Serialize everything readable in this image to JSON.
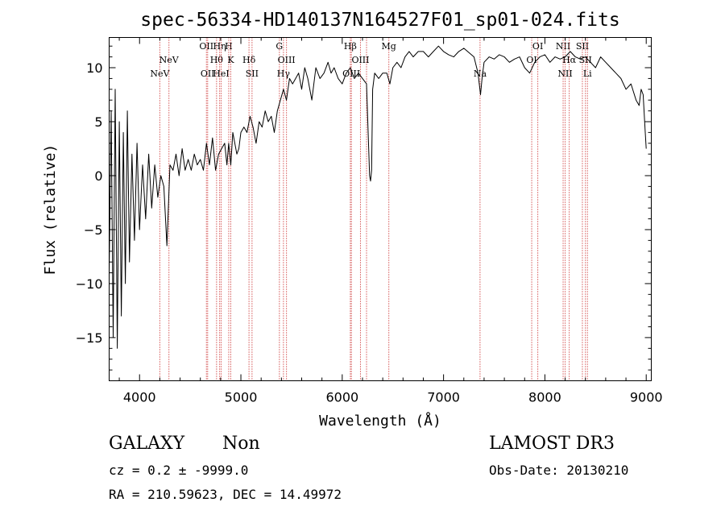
{
  "chart_data": {
    "type": "line",
    "title": "spec-56334-HD140137N164527F01_sp01-024.fits",
    "xlabel": "Wavelength (Å)",
    "ylabel": "Flux (relative)",
    "xlim": [
      3700,
      9050
    ],
    "ylim": [
      -19,
      12.8
    ],
    "xticks": [
      4000,
      5000,
      6000,
      7000,
      8000,
      9000
    ],
    "yticks": [
      -15,
      -10,
      -5,
      0,
      5,
      10
    ],
    "grid": false,
    "series": [
      {
        "name": "flux",
        "color": "#000000",
        "x": [
          3700,
          3720,
          3740,
          3760,
          3780,
          3800,
          3820,
          3840,
          3860,
          3880,
          3900,
          3925,
          3950,
          3975,
          4000,
          4030,
          4060,
          4090,
          4120,
          4150,
          4180,
          4210,
          4240,
          4270,
          4300,
          4330,
          4360,
          4390,
          4420,
          4450,
          4480,
          4510,
          4540,
          4570,
          4600,
          4630,
          4660,
          4690,
          4720,
          4750,
          4780,
          4810,
          4840,
          4862,
          4880,
          4900,
          4920,
          4940,
          4960,
          4980,
          5000,
          5030,
          5060,
          5090,
          5120,
          5150,
          5180,
          5210,
          5240,
          5270,
          5300,
          5330,
          5360,
          5390,
          5420,
          5450,
          5480,
          5510,
          5540,
          5570,
          5600,
          5630,
          5660,
          5700,
          5740,
          5780,
          5820,
          5860,
          5890,
          5920,
          5960,
          6000,
          6040,
          6080,
          6120,
          6160,
          6200,
          6240,
          6270,
          6280,
          6290,
          6300,
          6320,
          6360,
          6400,
          6440,
          6470,
          6500,
          6540,
          6580,
          6620,
          6660,
          6700,
          6750,
          6800,
          6850,
          6900,
          6950,
          7000,
          7050,
          7100,
          7150,
          7200,
          7250,
          7300,
          7340,
          7365,
          7380,
          7400,
          7450,
          7500,
          7550,
          7600,
          7650,
          7700,
          7750,
          7800,
          7850,
          7900,
          7950,
          8000,
          8050,
          8100,
          8150,
          8200,
          8250,
          8300,
          8350,
          8400,
          8450,
          8500,
          8550,
          8600,
          8650,
          8700,
          8750,
          8800,
          8850,
          8900,
          8930,
          8950,
          8970,
          8990,
          9000
        ],
        "y": [
          -9,
          6,
          -15,
          8,
          -16,
          5,
          -13,
          4,
          -10,
          6,
          -8,
          2,
          -6,
          3,
          -5,
          1,
          -4,
          2,
          -3,
          1,
          -2,
          0,
          -1,
          -6.5,
          1,
          0.5,
          2,
          0,
          2.5,
          0.5,
          1.5,
          0.5,
          2,
          1,
          1.5,
          0.5,
          3,
          1,
          3.5,
          0.5,
          2,
          2.5,
          3,
          1,
          3,
          1,
          4,
          3,
          2,
          2.5,
          4,
          4.5,
          4,
          5.5,
          4.5,
          3,
          5,
          4.5,
          6,
          5,
          5.5,
          4,
          6,
          7,
          8,
          7,
          9,
          8.5,
          9,
          9.5,
          8,
          10,
          9,
          7,
          10,
          9,
          9.5,
          10.5,
          9.5,
          10,
          9,
          8.5,
          9.5,
          10,
          9,
          9.5,
          9,
          8.5,
          0,
          -0.5,
          0.5,
          8,
          9.5,
          9,
          9.5,
          9.5,
          8.5,
          10,
          10.5,
          10,
          11,
          11.5,
          11,
          11.5,
          11.5,
          11,
          11.5,
          12,
          11.5,
          11.2,
          11,
          11.5,
          11.8,
          11.4,
          11,
          9.5,
          7.5,
          9,
          10.5,
          11,
          10.8,
          11.2,
          11,
          10.5,
          10.8,
          11,
          10,
          9.5,
          10.5,
          11,
          11.2,
          10.5,
          11,
          10.8,
          11,
          11.5,
          11,
          10.8,
          11,
          10.5,
          10,
          11,
          10.5,
          10,
          9.5,
          9,
          8,
          8.5,
          7,
          6.5,
          8,
          7.5,
          4,
          2.5
        ]
      }
    ],
    "lines": [
      {
        "x": 4200,
        "label": "NeV",
        "row": 2
      },
      {
        "x": 4290,
        "label": "NeV",
        "row": 1
      },
      {
        "x": 4660,
        "label": "OII",
        "row": 0
      },
      {
        "x": 4672,
        "label": "OII",
        "row": 2
      },
      {
        "x": 4760,
        "label": "Hθ",
        "row": 1
      },
      {
        "x": 4790,
        "label": "Hη",
        "row": 0
      },
      {
        "x": 4805,
        "label": "HeI",
        "row": 2
      },
      {
        "x": 4880,
        "label": "H",
        "row": 0
      },
      {
        "x": 4900,
        "label": "K",
        "row": 1
      },
      {
        "x": 5080,
        "label": "Hδ",
        "row": 1
      },
      {
        "x": 5110,
        "label": "SII",
        "row": 2
      },
      {
        "x": 5380,
        "label": "G",
        "row": 0
      },
      {
        "x": 5420,
        "label": "Hγ",
        "row": 2
      },
      {
        "x": 5450,
        "label": "OIII",
        "row": 1
      },
      {
        "x": 6080,
        "label": "Hβ",
        "row": 0
      },
      {
        "x": 6090,
        "label": "OIII",
        "row": 2
      },
      {
        "x": 6180,
        "label": "OIII",
        "row": 1
      },
      {
        "x": 6240,
        "label": "",
        "row": 2
      },
      {
        "x": 6460,
        "label": "Mg",
        "row": 0
      },
      {
        "x": 7360,
        "label": "Na",
        "row": 2
      },
      {
        "x": 7870,
        "label": "OI",
        "row": 1
      },
      {
        "x": 7930,
        "label": "OI",
        "row": 0
      },
      {
        "x": 8180,
        "label": "NII",
        "row": 0
      },
      {
        "x": 8200,
        "label": "NII",
        "row": 2
      },
      {
        "x": 8240,
        "label": "Hα",
        "row": 1
      },
      {
        "x": 8370,
        "label": "SII",
        "row": 0
      },
      {
        "x": 8400,
        "label": "SII",
        "row": 1
      },
      {
        "x": 8420,
        "label": "Li",
        "row": 2
      }
    ],
    "line_color": "#c00000"
  },
  "info": {
    "class": "GALAXY",
    "subclass": "Non",
    "survey": "LAMOST DR3",
    "cz": "cz = 0.2 ± -9999.0",
    "obs_date": "Obs-Date: 20130210",
    "coords": "RA = 210.59623, DEC =  14.49972"
  }
}
